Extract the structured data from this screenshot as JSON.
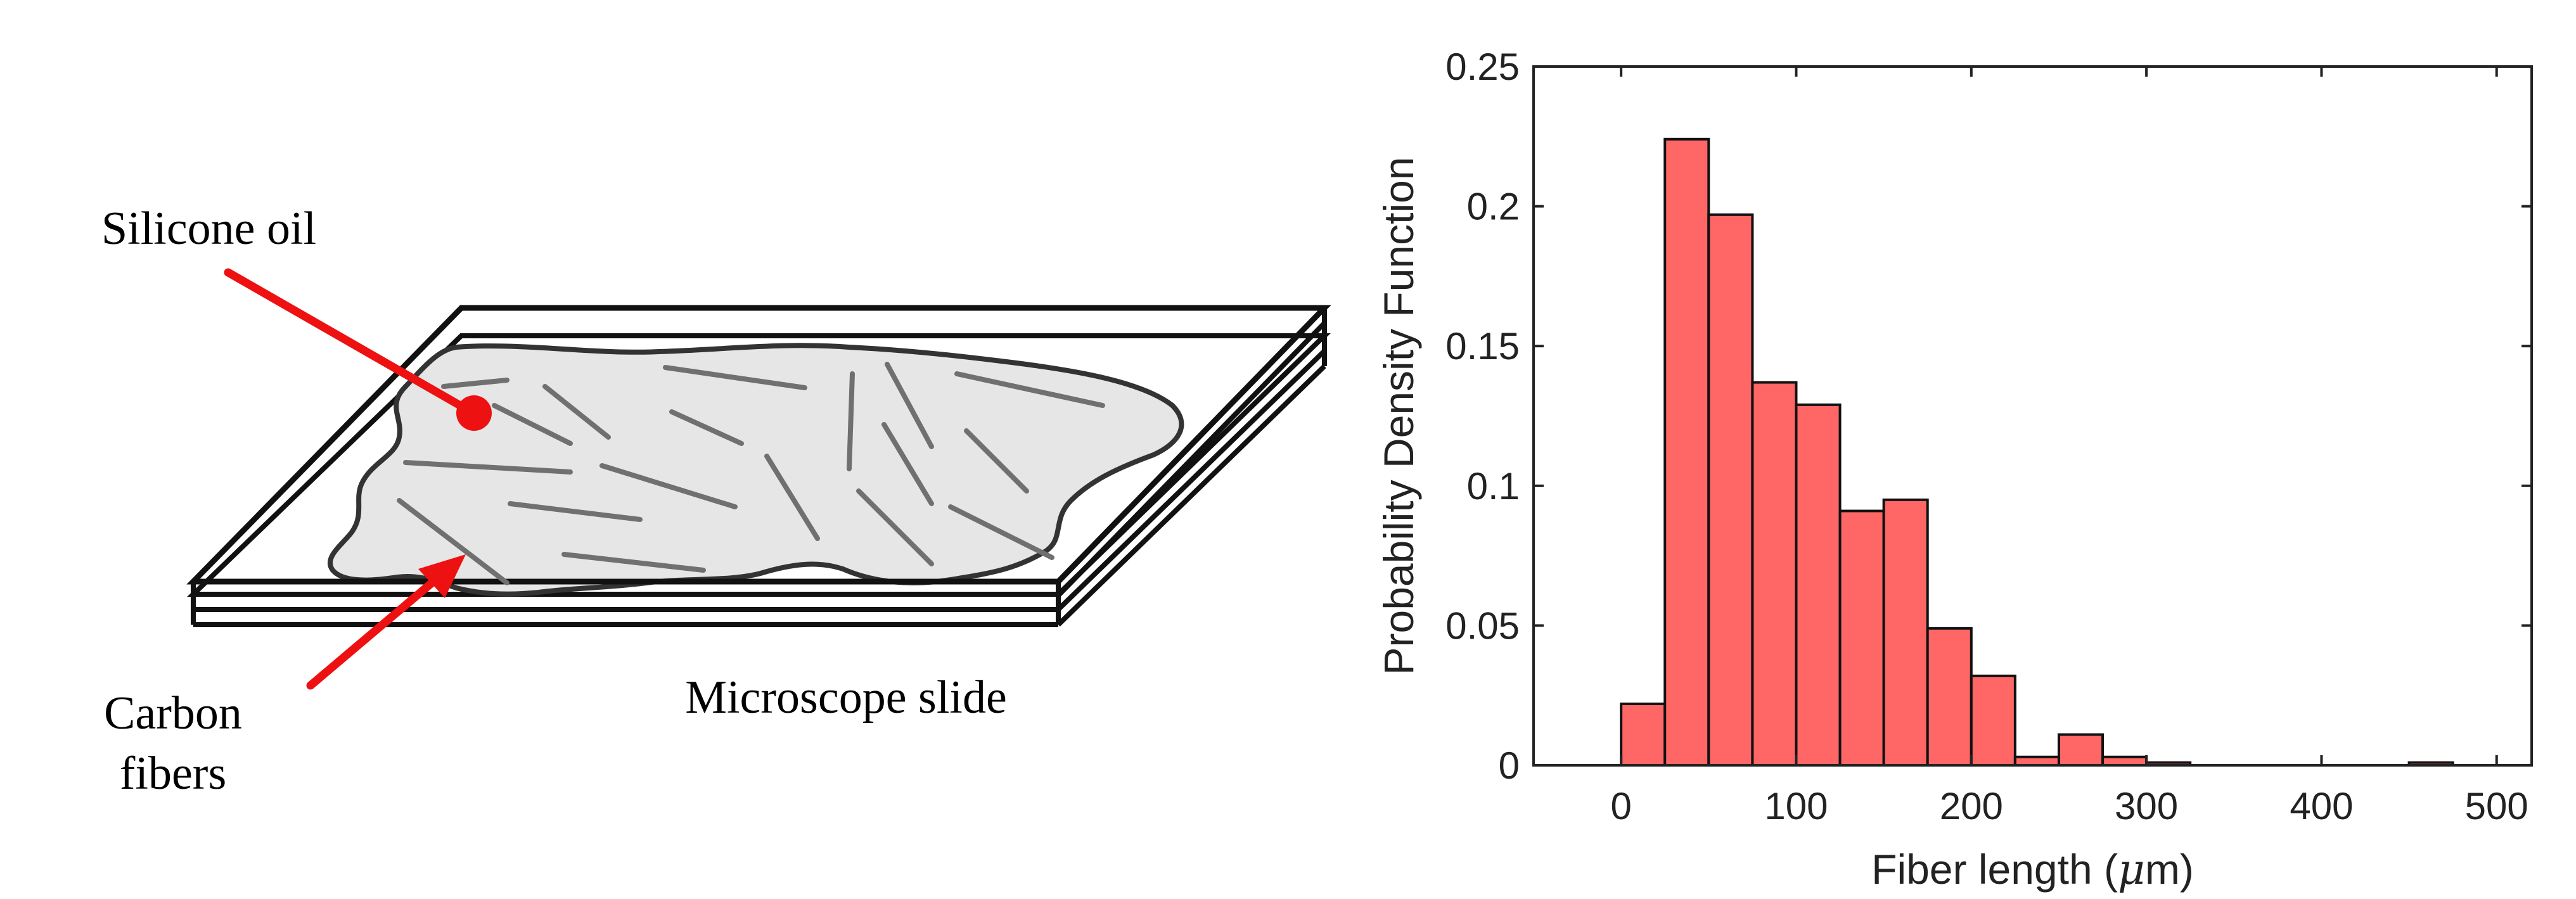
{
  "diagram": {
    "labels": {
      "silicone_oil": "Silicone oil",
      "carbon_fibers_line1": "Carbon",
      "carbon_fibers_line2": "fibers",
      "microscope_slide": "Microscope slide"
    },
    "colors": {
      "arrow": "#ee1111",
      "oil_fill": "#e6e6e6",
      "fiber": "#707070",
      "outline": "#111111"
    }
  },
  "chart_data": {
    "type": "bar",
    "title": "",
    "xlabel_prefix": "Fiber length (",
    "xlabel_mu": "μ",
    "xlabel_suffix": "m)",
    "ylabel": "Probability Density Function",
    "xlim": [
      -50,
      520
    ],
    "ylim": [
      0,
      0.25
    ],
    "xticks": [
      "0",
      "100",
      "200",
      "300",
      "400",
      "500"
    ],
    "yticks": [
      "0",
      "0.05",
      "0.1",
      "0.15",
      "0.2",
      "0.25"
    ],
    "bin_width": 25,
    "bin_edges_start": [
      0,
      25,
      50,
      75,
      100,
      125,
      150,
      175,
      200,
      225,
      250,
      275,
      300,
      450
    ],
    "values": [
      0.022,
      0.224,
      0.197,
      0.137,
      0.129,
      0.091,
      0.095,
      0.049,
      0.032,
      0.003,
      0.011,
      0.003,
      0.001,
      0.001
    ],
    "bar_color": "#ff6666",
    "edge_color": "#111111",
    "grid": false
  }
}
